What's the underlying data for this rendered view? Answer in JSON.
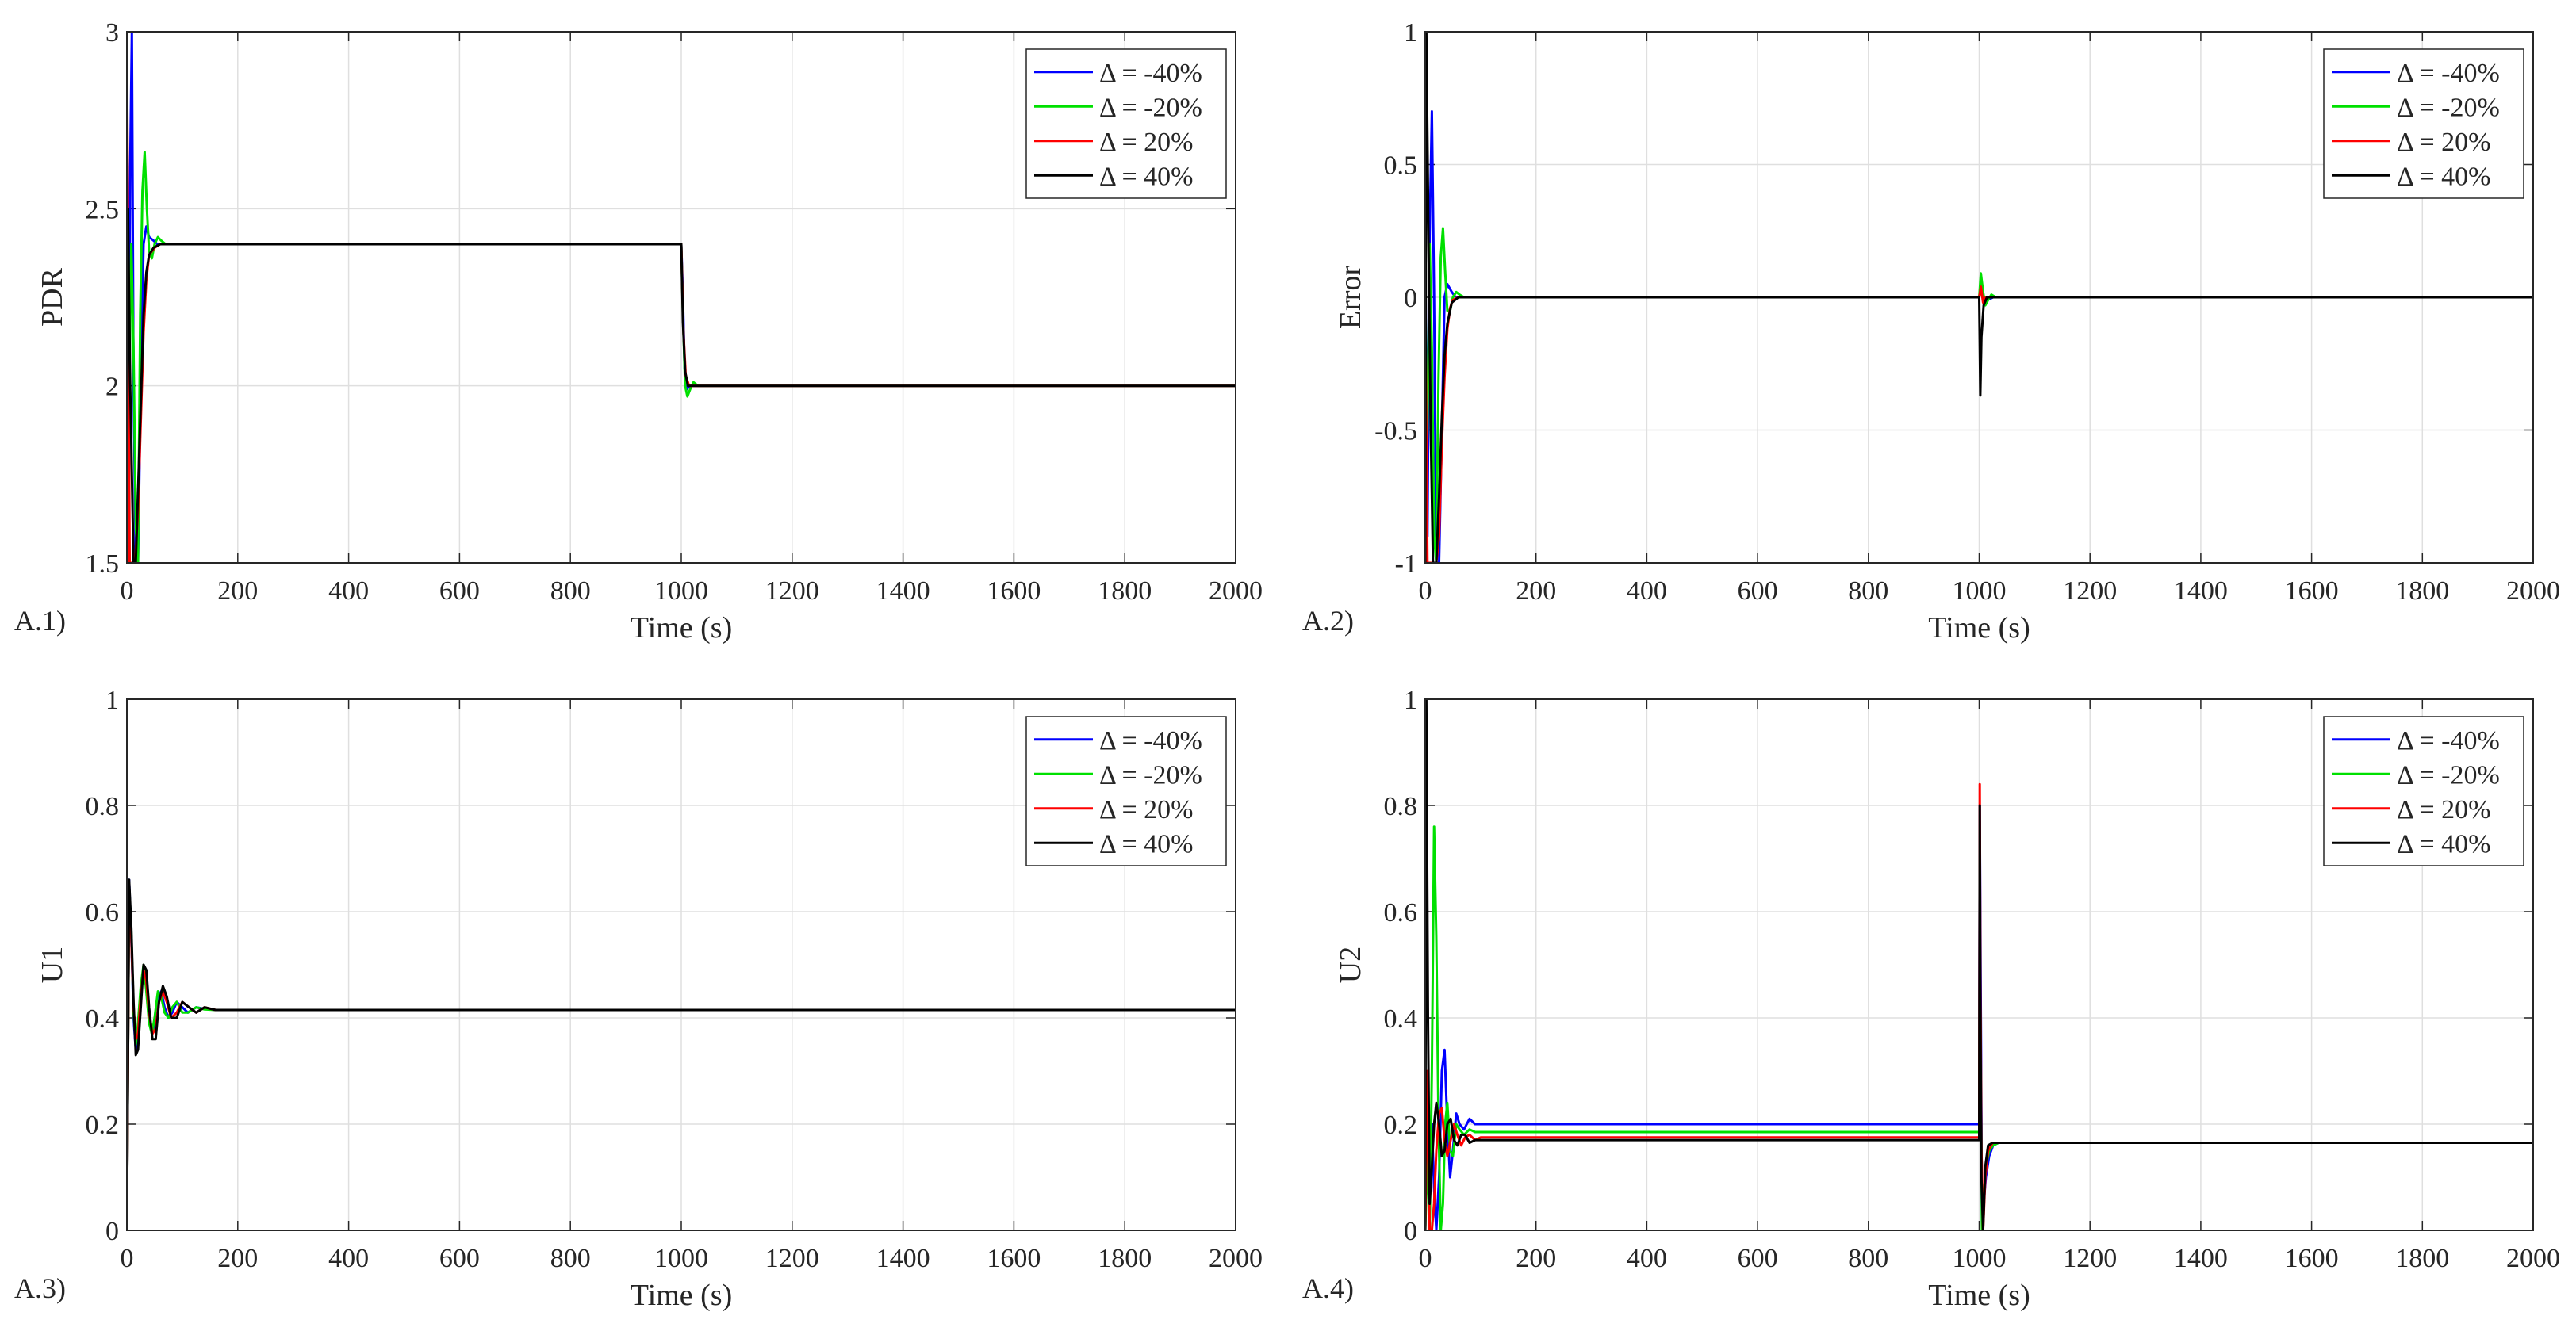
{
  "chart_data": [
    {
      "panel_label": "A.1)",
      "type": "line",
      "xlabel": "Time (s)",
      "ylabel": "PDR",
      "xlim": [
        0,
        2000
      ],
      "ylim": [
        1.5,
        3
      ],
      "xticks": [
        "0",
        "200",
        "400",
        "600",
        "800",
        "1000",
        "1200",
        "1400",
        "1600",
        "1800",
        "2000"
      ],
      "yticks": [
        "1.5",
        "2",
        "2.5",
        "3"
      ],
      "grid": true,
      "legend_position": "top-right",
      "series": [
        {
          "name": "Δ = -40%",
          "color": "#0000ff",
          "x": [
            0,
            3,
            6,
            9,
            12,
            16,
            20,
            25,
            30,
            35,
            40,
            48,
            55,
            65,
            80,
            1000,
            1003,
            1006,
            1010,
            1015,
            1025,
            2000
          ],
          "y": [
            2.2,
            1.5,
            2.62,
            3.0,
            2.0,
            1.5,
            1.5,
            2.0,
            2.4,
            2.45,
            2.42,
            2.41,
            2.4,
            2.4,
            2.4,
            2.4,
            2.25,
            2.05,
            1.99,
            2.0,
            2.0,
            2.0
          ]
        },
        {
          "name": "Δ = -20%",
          "color": "#00e000",
          "x": [
            0,
            4,
            8,
            12,
            16,
            20,
            24,
            28,
            32,
            36,
            40,
            45,
            50,
            56,
            62,
            70,
            80,
            1000,
            1003,
            1007,
            1011,
            1016,
            1022,
            1030,
            2000
          ],
          "y": [
            1.6,
            1.95,
            2.4,
            2.1,
            1.6,
            1.5,
            2.2,
            2.55,
            2.66,
            2.5,
            2.38,
            2.36,
            2.4,
            2.42,
            2.41,
            2.4,
            2.4,
            2.4,
            2.2,
            2.0,
            1.97,
            1.99,
            2.01,
            2.0,
            2.0
          ]
        },
        {
          "name": "Δ = 20%",
          "color": "#ff0000",
          "x": [
            0,
            2,
            5,
            10,
            15,
            20,
            25,
            30,
            35,
            40,
            50,
            60,
            80,
            1000,
            1004,
            1008,
            1014,
            1022,
            2000
          ],
          "y": [
            3.0,
            2.4,
            1.5,
            1.5,
            1.5,
            1.65,
            1.9,
            2.15,
            2.3,
            2.37,
            2.39,
            2.4,
            2.4,
            2.4,
            2.15,
            2.03,
            2.0,
            2.0,
            2.0
          ]
        },
        {
          "name": "Δ = 40%",
          "color": "#000000",
          "x": [
            0,
            2,
            6,
            12,
            16,
            20,
            25,
            30,
            35,
            40,
            48,
            60,
            80,
            1000,
            1003,
            1007,
            1012,
            1020,
            2000
          ],
          "y": [
            1.5,
            2.5,
            2.0,
            1.5,
            1.5,
            1.7,
            1.95,
            2.2,
            2.32,
            2.37,
            2.39,
            2.4,
            2.4,
            2.4,
            2.18,
            2.04,
            2.0,
            2.0,
            2.0
          ]
        }
      ]
    },
    {
      "panel_label": "A.2)",
      "type": "line",
      "xlabel": "Time (s)",
      "ylabel": "Error",
      "xlim": [
        0,
        2000
      ],
      "ylim": [
        -1,
        1
      ],
      "xticks": [
        "0",
        "200",
        "400",
        "600",
        "800",
        "1000",
        "1200",
        "1400",
        "1600",
        "1800",
        "2000"
      ],
      "yticks": [
        "-1",
        "-0.5",
        "0",
        "0.5",
        "1"
      ],
      "grid": true,
      "legend_position": "top-right",
      "series": [
        {
          "name": "Δ = -40%",
          "color": "#0000ff",
          "x": [
            0,
            4,
            8,
            12,
            16,
            20,
            25,
            30,
            35,
            40,
            48,
            55,
            65,
            80,
            1000,
            1003,
            1006,
            1010,
            1015,
            1025,
            2000
          ],
          "y": [
            0.2,
            -0.9,
            0.23,
            0.7,
            0.0,
            -1.0,
            -1.0,
            -0.5,
            0.0,
            0.05,
            0.02,
            0.0,
            0.0,
            0.0,
            0.0,
            0.05,
            0.02,
            -0.02,
            -0.01,
            0.0,
            0.0
          ]
        },
        {
          "name": "Δ = -20%",
          "color": "#00e000",
          "x": [
            0,
            4,
            8,
            12,
            16,
            20,
            24,
            28,
            32,
            36,
            40,
            45,
            50,
            56,
            62,
            70,
            80,
            1000,
            1003,
            1007,
            1011,
            1016,
            1022,
            1030,
            2000
          ],
          "y": [
            -0.9,
            -0.5,
            0.2,
            -0.2,
            -0.9,
            -1.0,
            -0.3,
            0.15,
            0.26,
            0.1,
            -0.05,
            -0.05,
            0.0,
            0.02,
            0.01,
            0.0,
            0.0,
            0.0,
            0.09,
            0.02,
            -0.03,
            -0.01,
            0.01,
            0.0,
            0.0
          ]
        },
        {
          "name": "Δ = 20%",
          "color": "#ff0000",
          "x": [
            0,
            4,
            8,
            12,
            16,
            20,
            25,
            30,
            35,
            40,
            45,
            50,
            60,
            80,
            1000,
            1003,
            1007,
            1012,
            1020,
            2000
          ],
          "y": [
            0.0,
            -1.0,
            -1.0,
            -1.0,
            -1.0,
            -1.0,
            -0.9,
            -0.55,
            -0.3,
            -0.12,
            -0.04,
            -0.01,
            0.0,
            0.0,
            0.0,
            0.04,
            -0.02,
            0.0,
            0.0,
            0.0
          ]
        },
        {
          "name": "Δ = 40%",
          "color": "#000000",
          "x": [
            0,
            2,
            6,
            10,
            14,
            20,
            25,
            30,
            35,
            40,
            48,
            60,
            80,
            1000,
            1002,
            1004,
            1008,
            1014,
            1022,
            2000
          ],
          "y": [
            -1.0,
            1.0,
            0.2,
            -0.5,
            -1.0,
            -1.0,
            -0.75,
            -0.45,
            -0.22,
            -0.1,
            -0.02,
            0.0,
            0.0,
            0.0,
            -0.37,
            -0.15,
            -0.03,
            0.0,
            0.0,
            0.0
          ]
        }
      ]
    },
    {
      "panel_label": "A.3)",
      "type": "line",
      "xlabel": "Time (s)",
      "ylabel": "U1",
      "xlim": [
        0,
        2000
      ],
      "ylim": [
        0,
        1
      ],
      "xticks": [
        "0",
        "200",
        "400",
        "600",
        "800",
        "1000",
        "1200",
        "1400",
        "1600",
        "1800",
        "2000"
      ],
      "yticks": [
        "0",
        "0.2",
        "0.4",
        "0.6",
        "0.8",
        "1"
      ],
      "grid": true,
      "legend_position": "top-right",
      "series": [
        {
          "name": "Δ = -40%",
          "color": "#0000ff",
          "x": [
            0,
            4,
            8,
            12,
            16,
            20,
            25,
            30,
            35,
            40,
            45,
            50,
            56,
            62,
            68,
            75,
            82,
            90,
            100,
            110,
            125,
            140,
            160,
            200,
            2000
          ],
          "y": [
            0.0,
            0.66,
            0.55,
            0.4,
            0.34,
            0.38,
            0.45,
            0.49,
            0.46,
            0.4,
            0.37,
            0.39,
            0.44,
            0.45,
            0.42,
            0.4,
            0.41,
            0.43,
            0.42,
            0.41,
            0.42,
            0.417,
            0.415,
            0.415,
            0.415
          ]
        },
        {
          "name": "Δ = -20%",
          "color": "#00e000",
          "x": [
            0,
            4,
            8,
            12,
            16,
            20,
            25,
            30,
            35,
            40,
            45,
            50,
            56,
            62,
            68,
            75,
            82,
            90,
            100,
            110,
            125,
            140,
            160,
            200,
            2000
          ],
          "y": [
            0.0,
            0.65,
            0.56,
            0.41,
            0.35,
            0.39,
            0.46,
            0.5,
            0.45,
            0.39,
            0.37,
            0.4,
            0.45,
            0.44,
            0.41,
            0.4,
            0.42,
            0.43,
            0.41,
            0.41,
            0.42,
            0.416,
            0.415,
            0.415,
            0.415
          ]
        },
        {
          "name": "Δ = 20%",
          "color": "#ff0000",
          "x": [
            0,
            4,
            8,
            12,
            16,
            20,
            25,
            30,
            35,
            40,
            46,
            52,
            58,
            65,
            72,
            80,
            90,
            100,
            112,
            125,
            140,
            160,
            200,
            2000
          ],
          "y": [
            0.0,
            0.65,
            0.55,
            0.42,
            0.36,
            0.37,
            0.44,
            0.49,
            0.47,
            0.41,
            0.37,
            0.38,
            0.43,
            0.45,
            0.43,
            0.4,
            0.41,
            0.43,
            0.42,
            0.41,
            0.42,
            0.415,
            0.415,
            0.415
          ]
        },
        {
          "name": "Δ = 40%",
          "color": "#000000",
          "x": [
            0,
            4,
            8,
            12,
            16,
            20,
            25,
            30,
            35,
            40,
            46,
            52,
            58,
            65,
            72,
            80,
            90,
            100,
            112,
            125,
            140,
            160,
            200,
            2000
          ],
          "y": [
            0.0,
            0.66,
            0.57,
            0.43,
            0.33,
            0.34,
            0.42,
            0.5,
            0.49,
            0.42,
            0.36,
            0.36,
            0.43,
            0.46,
            0.44,
            0.4,
            0.4,
            0.43,
            0.42,
            0.41,
            0.42,
            0.415,
            0.415,
            0.415
          ]
        }
      ]
    },
    {
      "panel_label": "A.4)",
      "type": "line",
      "xlabel": "Time (s)",
      "ylabel": "U2",
      "xlim": [
        0,
        2000
      ],
      "ylim": [
        0,
        1
      ],
      "xticks": [
        "0",
        "200",
        "400",
        "600",
        "800",
        "1000",
        "1200",
        "1400",
        "1600",
        "1800",
        "2000"
      ],
      "yticks": [
        "0",
        "0.2",
        "0.4",
        "0.6",
        "0.8",
        "1"
      ],
      "grid": true,
      "legend_position": "top-right",
      "series": [
        {
          "name": "Δ = -40%",
          "color": "#0000ff",
          "x": [
            0,
            4,
            8,
            12,
            16,
            20,
            25,
            30,
            35,
            40,
            45,
            50,
            56,
            62,
            70,
            80,
            90,
            100,
            120,
            1000,
            1001,
            1003,
            1005,
            1008,
            1012,
            1018,
            1025,
            1035,
            2000
          ],
          "y": [
            0.0,
            0.25,
            0.05,
            0.2,
            0.08,
            0.0,
            0.1,
            0.3,
            0.34,
            0.2,
            0.1,
            0.15,
            0.22,
            0.2,
            0.19,
            0.21,
            0.2,
            0.2,
            0.2,
            0.2,
            0.8,
            0.4,
            0.0,
            0.05,
            0.1,
            0.14,
            0.16,
            0.165,
            0.165
          ]
        },
        {
          "name": "Δ = -20%",
          "color": "#00e000",
          "x": [
            0,
            4,
            8,
            12,
            16,
            20,
            24,
            28,
            32,
            36,
            40,
            45,
            50,
            56,
            62,
            70,
            80,
            90,
            100,
            120,
            1000,
            1001,
            1003,
            1005,
            1008,
            1012,
            1018,
            1025,
            1035,
            2000
          ],
          "y": [
            0.0,
            0.15,
            0.0,
            0.3,
            0.76,
            0.55,
            0.2,
            0.0,
            0.05,
            0.2,
            0.24,
            0.15,
            0.14,
            0.2,
            0.19,
            0.18,
            0.19,
            0.185,
            0.185,
            0.185,
            0.185,
            0.6,
            0.3,
            0.0,
            0.06,
            0.12,
            0.15,
            0.16,
            0.165,
            0.165
          ]
        },
        {
          "name": "Δ = 20%",
          "color": "#ff0000",
          "x": [
            0,
            4,
            8,
            12,
            16,
            20,
            25,
            30,
            35,
            40,
            46,
            52,
            58,
            65,
            72,
            80,
            90,
            100,
            120,
            1000,
            1001,
            1002,
            1004,
            1007,
            1011,
            1016,
            1024,
            2000
          ],
          "y": [
            0.0,
            0.3,
            0.0,
            0.0,
            0.05,
            0.15,
            0.22,
            0.23,
            0.17,
            0.14,
            0.17,
            0.2,
            0.18,
            0.16,
            0.175,
            0.18,
            0.17,
            0.175,
            0.175,
            0.175,
            0.84,
            0.5,
            0.15,
            0.0,
            0.1,
            0.15,
            0.165,
            0.165
          ]
        },
        {
          "name": "Δ = 40%",
          "color": "#000000",
          "x": [
            0,
            2,
            5,
            8,
            12,
            16,
            20,
            25,
            30,
            35,
            40,
            46,
            52,
            58,
            65,
            72,
            80,
            90,
            100,
            120,
            1000,
            1001,
            1002,
            1004,
            1007,
            1011,
            1016,
            1024,
            2000
          ],
          "y": [
            0.0,
            1.0,
            0.4,
            0.05,
            0.12,
            0.2,
            0.24,
            0.2,
            0.14,
            0.15,
            0.2,
            0.21,
            0.17,
            0.16,
            0.18,
            0.18,
            0.165,
            0.17,
            0.17,
            0.17,
            0.17,
            0.8,
            0.45,
            0.1,
            0.0,
            0.12,
            0.16,
            0.165,
            0.165
          ]
        }
      ]
    }
  ]
}
